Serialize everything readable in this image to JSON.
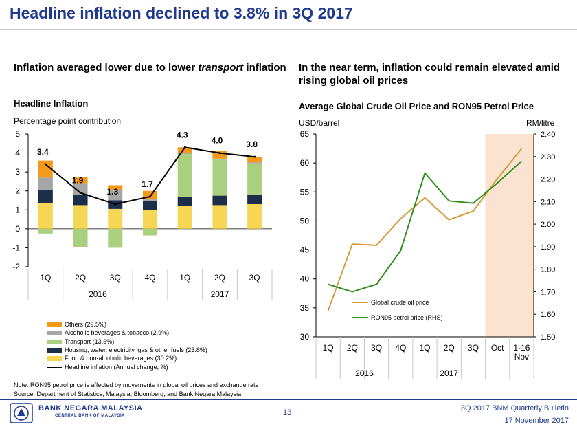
{
  "slide": {
    "title": "Headline inflation declined to 3.8% in 3Q 2017",
    "left_subtitle_a": "Inflation averaged lower due to lower ",
    "left_subtitle_b": "transport",
    "left_subtitle_c": " inflation",
    "right_subtitle": "In the near term, inflation could remain elevated amid rising global oil prices",
    "note": "Note: RON95 petrol price is affected by movements in global oil prices and exchange rate",
    "source": "Source: Department of Statistics, Malaysia, Bloomberg, and Bank Negara Malaysia"
  },
  "footer": {
    "bank_name": "BANK NEGARA MALAYSIA",
    "bank_subtitle": "CENTRAL BANK OF MALAYSIA",
    "page_number": "13",
    "bulletin": "3Q 2017 BNM Quarterly Bulletin",
    "date": "17 November 2017"
  },
  "chart_data": [
    {
      "type": "bar",
      "stacked": true,
      "title": "Headline Inflation",
      "ylabel": "Percentage point contribution",
      "ylim": [
        -2,
        5
      ],
      "yticks": [
        "5",
        "4",
        "3",
        "2",
        "1",
        "0",
        "-1",
        "-2"
      ],
      "categories": [
        "1Q",
        "2Q",
        "3Q",
        "4Q",
        "1Q",
        "2Q",
        "3Q"
      ],
      "year_groups": [
        {
          "label": "2016",
          "count": 4
        },
        {
          "label": "2017",
          "count": 3
        }
      ],
      "series": [
        {
          "name": "Food & non-alcoholic beverages (30.2%)",
          "color": "#f6d655",
          "values": [
            1.35,
            1.25,
            1.05,
            1.0,
            1.2,
            1.25,
            1.3
          ]
        },
        {
          "name": "Housing, water, electricity, gas & other fuels (23.8%)",
          "color": "#1c2e4a",
          "values": [
            0.7,
            0.55,
            0.45,
            0.45,
            0.5,
            0.5,
            0.5
          ]
        },
        {
          "name": "Transport (13.6%)",
          "color": "#a9cf7f",
          "values": [
            -0.25,
            -0.95,
            -1.0,
            -0.35,
            2.25,
            1.9,
            1.65
          ]
        },
        {
          "name": "Alcoholic beverages & tobacco (2.9%)",
          "color": "#a6a6a6",
          "values": [
            0.65,
            0.6,
            0.55,
            0.1,
            0.05,
            0.05,
            0.05
          ]
        },
        {
          "name": "Others (29.5%)",
          "color": "#f39a1c",
          "values": [
            0.9,
            0.35,
            0.25,
            0.45,
            0.3,
            0.4,
            0.3
          ]
        }
      ],
      "line": {
        "name": "Headline inflation (Annual change, %)",
        "color": "#000000",
        "values": [
          3.4,
          1.9,
          1.3,
          1.7,
          4.3,
          4.0,
          3.8
        ],
        "labels": [
          "3.4",
          "1.9",
          "1.3",
          "1.7",
          "4.3",
          "4.0",
          "3.8"
        ]
      },
      "legend_order": [
        "Others (29.5%)",
        "Alcoholic beverages & tobacco (2.9%)",
        "Transport (13.6%)",
        "Housing, water, electricity, gas & other fuels (23.8%)",
        "Food & non-alcoholic beverages (30.2%)",
        "Headline inflation (Annual change, %)"
      ],
      "legend_placement": "bottom-left",
      "grid": false
    },
    {
      "type": "line",
      "title": "Average Global Crude Oil Price and RON95 Petrol Price",
      "ylabel_left": "USD/barrel",
      "ylabel_right": "RM/litre",
      "ylim_left": [
        30,
        65
      ],
      "ylim_right": [
        1.5,
        2.4
      ],
      "yticks_left": [
        "65",
        "60",
        "55",
        "50",
        "45",
        "40",
        "35",
        "30"
      ],
      "yticks_right": [
        "2.40",
        "2.30",
        "2.20",
        "2.10",
        "2.00",
        "1.90",
        "1.80",
        "1.70",
        "1.60",
        "1.50"
      ],
      "categories": [
        "1Q",
        "2Q",
        "3Q",
        "4Q",
        "1Q",
        "2Q",
        "3Q",
        "Oct",
        "1-16 Nov"
      ],
      "year_groups": [
        {
          "label": "2016",
          "count": 4
        },
        {
          "label": "2017",
          "count": 3
        }
      ],
      "highlight": {
        "from_category": "Oct",
        "to_category": "1-16 Nov",
        "color": "#fbe3d2"
      },
      "series": [
        {
          "name": "Global crude oil price",
          "axis": "left",
          "color": "#d69a3a",
          "values": [
            34.5,
            46.0,
            45.8,
            50.4,
            54.0,
            50.2,
            51.7,
            57.3,
            62.5
          ]
        },
        {
          "name": "RON95 petrol price (RHS)",
          "axis": "right",
          "color": "#2f8f1e",
          "values": [
            1.733,
            1.7,
            1.733,
            1.883,
            2.227,
            2.103,
            2.093,
            2.183,
            2.28
          ]
        }
      ],
      "legend_placement": "bottom-right-inside",
      "grid": false
    }
  ]
}
